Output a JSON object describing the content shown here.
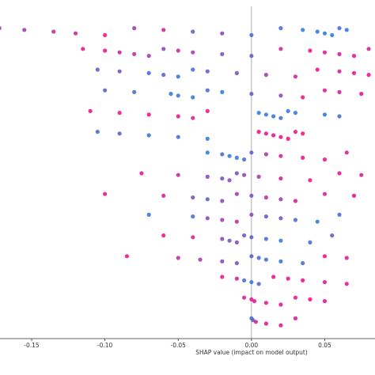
{
  "chart_data": {
    "type": "beeswarm",
    "xlabel": "SHAP value (impact on model output)",
    "xlim": [
      -0.1716,
      0.0843
    ],
    "xticks": [
      -0.15,
      {
        "value": -0.1,
        "label": "-0.10"
      },
      -0.05,
      {
        "value": 0,
        "label": "0.00"
      },
      0.05
    ],
    "colormap": [
      "#1e88e5",
      "#ff0d87"
    ],
    "rows": [
      {
        "values": [
          -0.172,
          -0.155,
          -0.135,
          -0.12,
          -0.1,
          -0.08,
          -0.06,
          -0.04,
          -0.02,
          0.0,
          0.02,
          0.035,
          0.045,
          0.05,
          0.055,
          0.06,
          0.065
        ],
        "features": [
          0.5,
          0.6,
          0.7,
          0.8,
          0.9,
          0.6,
          0.8,
          0.3,
          0.5,
          0.2,
          0.2,
          0.1,
          0.1,
          0.1,
          0.1,
          0.2,
          0.1
        ]
      },
      {
        "values": [
          -0.115,
          -0.1,
          -0.09,
          -0.08,
          -0.07,
          -0.06,
          -0.05,
          -0.04,
          -0.02,
          0.0,
          0.02,
          0.04,
          0.05,
          0.06,
          0.07,
          0.08
        ],
        "features": [
          0.9,
          0.95,
          0.8,
          0.7,
          0.6,
          0.5,
          0.7,
          0.6,
          0.4,
          0.3,
          0.8,
          0.9,
          0.9,
          0.8,
          0.9,
          0.8
        ]
      },
      {
        "values": [
          -0.105,
          -0.09,
          -0.07,
          -0.06,
          -0.05,
          -0.04,
          -0.03,
          -0.01,
          0.01,
          0.03,
          0.045,
          0.06,
          0.07,
          0.08
        ],
        "features": [
          0.3,
          0.4,
          0.2,
          0.3,
          0.1,
          0.2,
          0.3,
          0.4,
          0.6,
          0.8,
          0.9,
          0.8,
          0.9,
          0.9
        ]
      },
      {
        "values": [
          -0.1,
          -0.08,
          -0.055,
          -0.05,
          -0.04,
          -0.03,
          -0.02,
          0.0,
          0.02,
          0.035,
          0.05,
          0.06,
          0.075
        ],
        "features": [
          0.3,
          0.2,
          0.1,
          0.1,
          0.1,
          0.2,
          0.1,
          0.3,
          0.5,
          0.9,
          0.9,
          0.8,
          0.9
        ]
      },
      {
        "values": [
          -0.11,
          -0.09,
          -0.07,
          -0.05,
          -0.04,
          -0.03,
          0.005,
          0.01,
          0.015,
          0.02,
          0.025,
          0.03,
          0.05,
          0.06
        ],
        "features": [
          0.9,
          0.9,
          0.95,
          0.9,
          0.8,
          0.9,
          0.1,
          0.1,
          0.1,
          0.2,
          0.1,
          0.1,
          0.1,
          0.2
        ]
      },
      {
        "values": [
          -0.105,
          -0.09,
          -0.07,
          -0.05,
          -0.03,
          0.005,
          0.01,
          0.015,
          0.02,
          0.025,
          0.03,
          0.035
        ],
        "features": [
          0.2,
          0.3,
          0.1,
          0.2,
          0.1,
          0.95,
          0.9,
          0.95,
          0.9,
          1,
          0.9,
          0.95
        ]
      },
      {
        "values": [
          -0.03,
          -0.02,
          -0.015,
          -0.01,
          -0.005,
          0.0,
          0.01,
          0.02,
          0.035,
          0.05,
          0.065
        ],
        "features": [
          0.1,
          0.2,
          0.1,
          0.1,
          0.2,
          0.3,
          0.6,
          0.8,
          0.9,
          0.9,
          0.8
        ]
      },
      {
        "values": [
          -0.075,
          -0.05,
          -0.03,
          -0.02,
          -0.015,
          -0.01,
          -0.005,
          0.005,
          0.02,
          0.04,
          0.06,
          0.075
        ],
        "features": [
          0.9,
          0.7,
          0.5,
          0.4,
          0.5,
          0.45,
          0.5,
          0.6,
          0.8,
          0.9,
          0.9,
          0.8
        ]
      },
      {
        "values": [
          -0.1,
          -0.06,
          -0.04,
          -0.03,
          -0.02,
          -0.01,
          0.0,
          0.01,
          0.02,
          0.03,
          0.05,
          0.07
        ],
        "features": [
          0.9,
          0.8,
          0.4,
          0.3,
          0.5,
          0.6,
          0.4,
          0.7,
          0.6,
          0.9,
          0.8,
          0.9
        ]
      },
      {
        "values": [
          -0.07,
          -0.04,
          -0.03,
          -0.02,
          -0.01,
          0.0,
          0.01,
          0.02,
          0.03,
          0.045,
          0.06
        ],
        "features": [
          0.1,
          0.2,
          0.5,
          0.6,
          0.7,
          0.5,
          0.3,
          0.4,
          0.2,
          0.1,
          0.2
        ]
      },
      {
        "values": [
          -0.06,
          -0.04,
          -0.02,
          -0.015,
          -0.01,
          -0.005,
          0.0,
          0.01,
          0.02,
          0.04,
          0.055
        ],
        "features": [
          0.9,
          0.8,
          0.5,
          0.4,
          0.45,
          0.4,
          0.3,
          0.2,
          0.1,
          0.2,
          0.3
        ]
      },
      {
        "values": [
          -0.085,
          -0.05,
          -0.035,
          -0.02,
          -0.01,
          0.0,
          0.005,
          0.01,
          0.02,
          0.035,
          0.05,
          0.065
        ],
        "features": [
          0.9,
          0.7,
          0.6,
          0.5,
          0.4,
          0.3,
          0.2,
          0.2,
          0.1,
          0.2,
          0.9,
          0.8
        ]
      },
      {
        "values": [
          -0.02,
          -0.01,
          -0.005,
          0.0,
          0.005,
          0.015,
          0.025,
          0.035,
          0.05,
          0.065
        ],
        "features": [
          0.9,
          0.8,
          0.2,
          0.1,
          0.3,
          0.9,
          0.9,
          0.95,
          0.9,
          0.9
        ]
      },
      {
        "values": [
          -0.005,
          0.0,
          0.002,
          0.01,
          0.02,
          0.03,
          0.04,
          0.05
        ],
        "features": [
          0.8,
          0.9,
          0.85,
          0.95,
          0.9,
          0.9,
          0.95,
          0.9
        ]
      },
      {
        "values": [
          0.0,
          0.001,
          0.003,
          0.01,
          0.02,
          0.03
        ],
        "features": [
          0.2,
          0.3,
          0.8,
          0.9,
          0.9,
          0.9
        ]
      }
    ]
  }
}
